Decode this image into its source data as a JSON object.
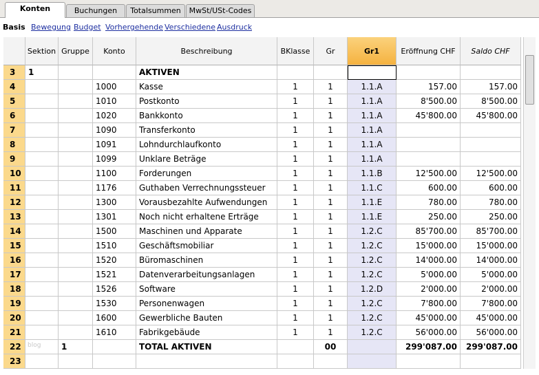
{
  "tabs": [
    "Konten",
    "Buchungen",
    "Totalsummen",
    "MwSt/USt-Codes"
  ],
  "views": [
    "Basis",
    "Bewegung",
    "Budget",
    "Vorhergehende",
    "Verschiedene",
    "Ausdruck"
  ],
  "table": {
    "columns": [
      "Sektion",
      "Gruppe",
      "Konto",
      "Beschreibung",
      "BKlasse",
      "Gr",
      "Gr1",
      "Eröffnung CHF",
      "Saldo CHF"
    ],
    "rows": [
      [
        "3",
        "1",
        null,
        null,
        "AKTIVEN",
        null,
        null,
        null,
        null,
        null
      ],
      [
        "4",
        null,
        null,
        "1000",
        "Kasse",
        "1",
        "1",
        "1.1.A",
        "157.00",
        "157.00"
      ],
      [
        "5",
        null,
        null,
        "1010",
        "Postkonto",
        "1",
        "1",
        "1.1.A",
        "8'500.00",
        "8'500.00"
      ],
      [
        "6",
        null,
        null,
        "1020",
        "Bankkonto",
        "1",
        "1",
        "1.1.A",
        "45'800.00",
        "45'800.00"
      ],
      [
        "7",
        null,
        null,
        "1090",
        "Transferkonto",
        "1",
        "1",
        "1.1.A",
        null,
        null
      ],
      [
        "8",
        null,
        null,
        "1091",
        "Lohndurchlaufkonto",
        "1",
        "1",
        "1.1.A",
        null,
        null
      ],
      [
        "9",
        null,
        null,
        "1099",
        "Unklare Beträge",
        "1",
        "1",
        "1.1.A",
        null,
        null
      ],
      [
        "10",
        null,
        null,
        "1100",
        "Forderungen",
        "1",
        "1",
        "1.1.B",
        "12'500.00",
        "12'500.00"
      ],
      [
        "11",
        null,
        null,
        "1176",
        "Guthaben Verrechnungssteuer",
        "1",
        "1",
        "1.1.C",
        "600.00",
        "600.00"
      ],
      [
        "12",
        null,
        null,
        "1300",
        "Vorausbezahlte Aufwendungen",
        "1",
        "1",
        "1.1.E",
        "780.00",
        "780.00"
      ],
      [
        "13",
        null,
        null,
        "1301",
        "Noch nicht erhaltene Erträge",
        "1",
        "1",
        "1.1.E",
        "250.00",
        "250.00"
      ],
      [
        "14",
        null,
        null,
        "1500",
        "Maschinen und Apparate",
        "1",
        "1",
        "1.2.C",
        "85'700.00",
        "85'700.00"
      ],
      [
        "15",
        null,
        null,
        "1510",
        "Geschäftsmobiliar",
        "1",
        "1",
        "1.2.C",
        "15'000.00",
        "15'000.00"
      ],
      [
        "16",
        null,
        null,
        "1520",
        "Büromaschinen",
        "1",
        "1",
        "1.2.C",
        "14'000.00",
        "14'000.00"
      ],
      [
        "17",
        null,
        null,
        "1521",
        "Datenverarbeitungsanlagen",
        "1",
        "1",
        "1.2.C",
        "5'000.00",
        "5'000.00"
      ],
      [
        "18",
        null,
        null,
        "1526",
        "Software",
        "1",
        "1",
        "1.2.D",
        "2'000.00",
        "2'000.00"
      ],
      [
        "19",
        null,
        null,
        "1530",
        "Personenwagen",
        "1",
        "1",
        "1.2.C",
        "7'800.00",
        "7'800.00"
      ],
      [
        "20",
        null,
        null,
        "1600",
        "Gewerbliche Bauten",
        "1",
        "1",
        "1.2.C",
        "45'000.00",
        "45'000.00"
      ],
      [
        "21",
        null,
        null,
        "1610",
        "Fabrikgebäude",
        "1",
        "1",
        "1.2.C",
        "56'000.00",
        "56'000.00"
      ],
      [
        "22",
        null,
        "1",
        null,
        "TOTAL AKTIVEN",
        null,
        "00",
        null,
        "299'087.00",
        "299'087.00"
      ],
      [
        "23",
        null,
        null,
        null,
        null,
        null,
        null,
        null,
        null,
        null
      ]
    ]
  },
  "watermark": "blog"
}
